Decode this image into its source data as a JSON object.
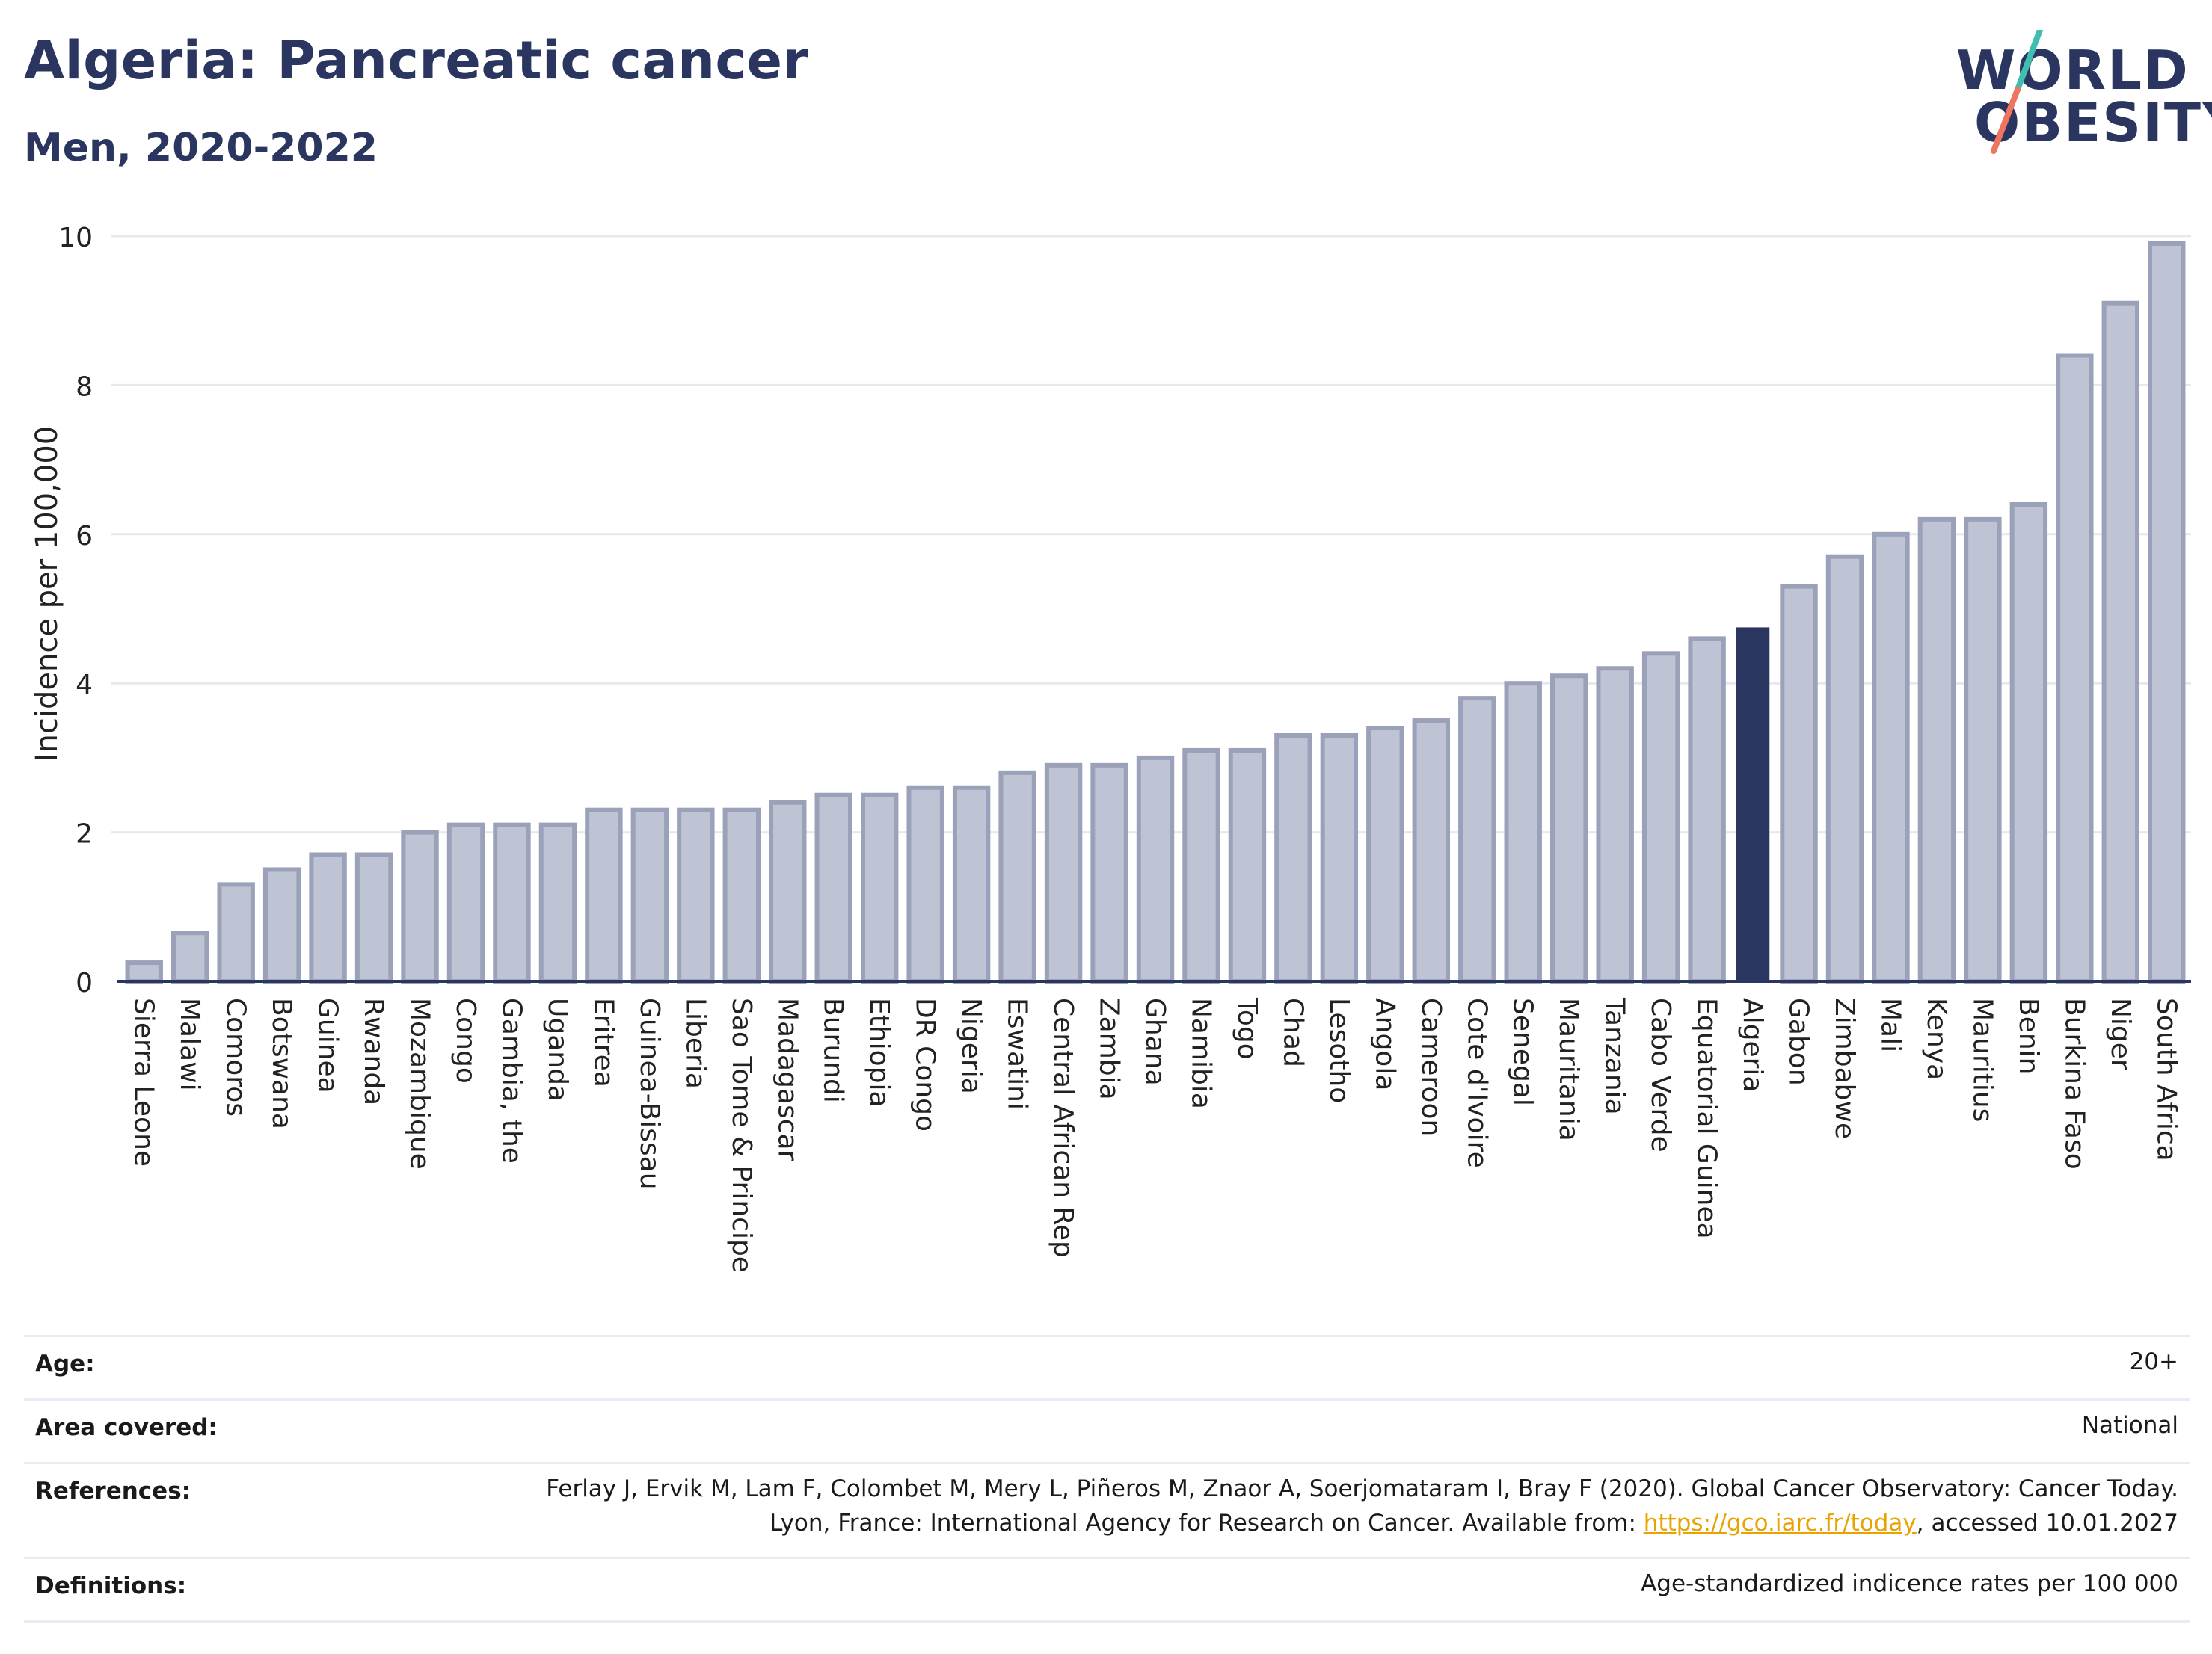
{
  "header": {
    "title": "Algeria: Pancreatic cancer",
    "subtitle": "Men, 2020-2022"
  },
  "logo": {
    "line1": "WORLD",
    "line2": "OBESITY",
    "slash_colors": [
      "#3fbfb0",
      "#f07560"
    ]
  },
  "colors": {
    "bar": "#bfc4d4",
    "bar_stroke": "#9aa1b8",
    "highlight": "#2a3560",
    "grid": "#e6e8ee",
    "axis": "#2a3560"
  },
  "chart_data": {
    "type": "bar",
    "title": "Algeria: Pancreatic cancer",
    "subtitle": "Men, 2020-2022",
    "ylabel": "Incidence per 100,000",
    "xlabel": "",
    "ylim": [
      0,
      10
    ],
    "yticks": [
      0,
      2,
      4,
      6,
      8,
      10
    ],
    "grid": true,
    "highlight": "Algeria",
    "categories": [
      "Sierra Leone",
      "Malawi",
      "Comoros",
      "Botswana",
      "Guinea",
      "Rwanda",
      "Mozambique",
      "Congo",
      "Gambia, the",
      "Uganda",
      "Eritrea",
      "Guinea-Bissau",
      "Liberia",
      "Sao Tome & Principe",
      "Madagascar",
      "Burundi",
      "Ethiopia",
      "DR Congo",
      "Nigeria",
      "Eswatini",
      "Central African Rep",
      "Zambia",
      "Ghana",
      "Namibia",
      "Togo",
      "Chad",
      "Lesotho",
      "Angola",
      "Cameroon",
      "Cote d'Ivoire",
      "Senegal",
      "Mauritania",
      "Tanzania",
      "Cabo Verde",
      "Equatorial Guinea",
      "Algeria",
      "Gabon",
      "Zimbabwe",
      "Mali",
      "Kenya",
      "Mauritius",
      "Benin",
      "Burkina Faso",
      "Niger",
      "South Africa"
    ],
    "values": [
      0.25,
      0.65,
      1.3,
      1.5,
      1.7,
      1.7,
      2.0,
      2.1,
      2.1,
      2.1,
      2.3,
      2.3,
      2.3,
      2.3,
      2.4,
      2.5,
      2.5,
      2.6,
      2.6,
      2.8,
      2.9,
      2.9,
      3.0,
      3.1,
      3.1,
      3.3,
      3.3,
      3.4,
      3.5,
      3.8,
      4.0,
      4.1,
      4.2,
      4.4,
      4.6,
      4.75,
      5.3,
      5.7,
      6.0,
      6.2,
      6.2,
      6.4,
      8.4,
      9.1,
      9.9
    ]
  },
  "info": {
    "rows": [
      {
        "label": "Age:",
        "value": "20+"
      },
      {
        "label": "Area covered:",
        "value": "National"
      },
      {
        "label": "References:",
        "value_pre": "Ferlay J, Ervik M, Lam F, Colombet M, Mery L, Piñeros M, Znaor A, Soerjomataram I, Bray F (2020). Global Cancer Observatory: Cancer Today. Lyon, France: International Agency for Research on Cancer. Available from: ",
        "link": "https://gco.iarc.fr/today",
        "value_post": ", accessed 10.01.2027"
      },
      {
        "label": "Definitions:",
        "value": "Age-standardized indicence rates per 100 000"
      }
    ]
  }
}
